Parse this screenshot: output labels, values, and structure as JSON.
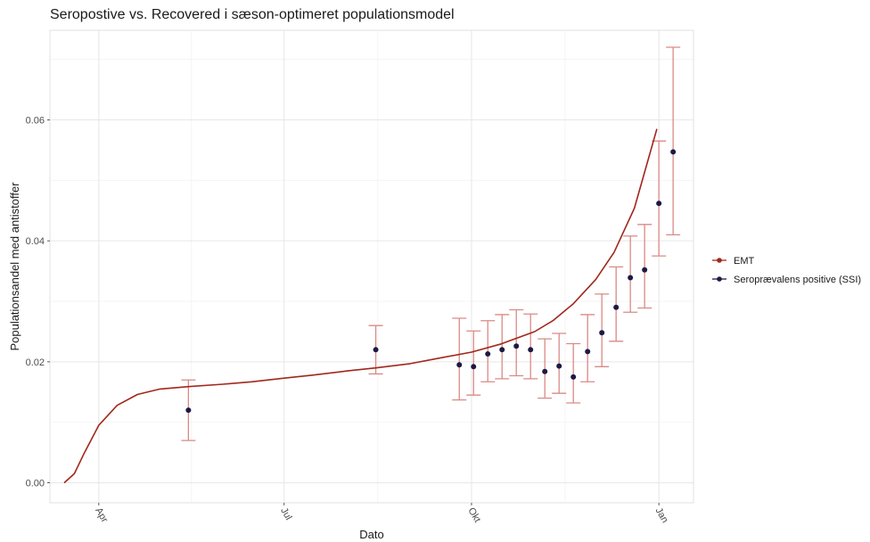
{
  "chart_data": {
    "type": "line",
    "title": "Seropostive vs. Recovered i sæson-optimeret populationsmodel",
    "xlabel": "Dato",
    "ylabel": "Populationsandel med antistoffer",
    "xlim": [
      "2020-03-08",
      "2021-01-18"
    ],
    "ylim": [
      -0.0033,
      0.0748
    ],
    "x_ticks": [
      {
        "date": "2020-04-01",
        "label": "Apr"
      },
      {
        "date": "2020-07-01",
        "label": "Jul"
      },
      {
        "date": "2020-10-01",
        "label": "Okt"
      },
      {
        "date": "2021-01-01",
        "label": "Jan"
      }
    ],
    "y_ticks": [
      {
        "value": 0.0,
        "label": "0.00"
      },
      {
        "value": 0.02,
        "label": "0.02"
      },
      {
        "value": 0.04,
        "label": "0.04"
      },
      {
        "value": 0.06,
        "label": "0.06"
      }
    ],
    "grid": true,
    "legend_position": "right",
    "series": [
      {
        "name": "EMT",
        "kind": "line",
        "color": "#a1281c",
        "x": [
          "2020-03-15",
          "2020-03-20",
          "2020-03-25",
          "2020-04-01",
          "2020-04-10",
          "2020-04-20",
          "2020-05-01",
          "2020-05-15",
          "2020-06-01",
          "2020-06-15",
          "2020-07-01",
          "2020-07-15",
          "2020-08-01",
          "2020-08-15",
          "2020-09-01",
          "2020-09-15",
          "2020-10-01",
          "2020-10-15",
          "2020-11-01",
          "2020-11-10",
          "2020-11-20",
          "2020-12-01",
          "2020-12-10",
          "2020-12-20",
          "2020-12-31"
        ],
        "y": [
          0.0,
          0.0015,
          0.005,
          0.0095,
          0.0128,
          0.0146,
          0.0155,
          0.0159,
          0.0163,
          0.0167,
          0.0173,
          0.0178,
          0.0185,
          0.019,
          0.0197,
          0.0206,
          0.0216,
          0.0229,
          0.025,
          0.0268,
          0.0296,
          0.0336,
          0.0381,
          0.0454,
          0.0585
        ]
      },
      {
        "name": "Seroprævalens positive (SSI)",
        "kind": "errorbar",
        "color": "#1c1a44",
        "errorbar_color": "#d98a86",
        "points": [
          {
            "x": "2020-05-15",
            "y": 0.012,
            "ymin": 0.007,
            "ymax": 0.017
          },
          {
            "x": "2020-08-15",
            "y": 0.022,
            "ymin": 0.018,
            "ymax": 0.026
          },
          {
            "x": "2020-09-25",
            "y": 0.0195,
            "ymin": 0.0137,
            "ymax": 0.0272
          },
          {
            "x": "2020-10-02",
            "y": 0.0192,
            "ymin": 0.0145,
            "ymax": 0.0251
          },
          {
            "x": "2020-10-09",
            "y": 0.0213,
            "ymin": 0.0167,
            "ymax": 0.0268
          },
          {
            "x": "2020-10-16",
            "y": 0.022,
            "ymin": 0.0172,
            "ymax": 0.0278
          },
          {
            "x": "2020-10-23",
            "y": 0.0226,
            "ymin": 0.0177,
            "ymax": 0.0286
          },
          {
            "x": "2020-10-30",
            "y": 0.022,
            "ymin": 0.0172,
            "ymax": 0.0279
          },
          {
            "x": "2020-11-06",
            "y": 0.0184,
            "ymin": 0.014,
            "ymax": 0.0238
          },
          {
            "x": "2020-11-13",
            "y": 0.0193,
            "ymin": 0.0148,
            "ymax": 0.0247
          },
          {
            "x": "2020-11-20",
            "y": 0.0175,
            "ymin": 0.0132,
            "ymax": 0.023
          },
          {
            "x": "2020-11-27",
            "y": 0.0217,
            "ymin": 0.0167,
            "ymax": 0.0278
          },
          {
            "x": "2020-12-04",
            "y": 0.0248,
            "ymin": 0.0192,
            "ymax": 0.0312
          },
          {
            "x": "2020-12-11",
            "y": 0.029,
            "ymin": 0.0234,
            "ymax": 0.0357
          },
          {
            "x": "2020-12-18",
            "y": 0.0339,
            "ymin": 0.0282,
            "ymax": 0.0408
          },
          {
            "x": "2020-12-25",
            "y": 0.0352,
            "ymin": 0.0289,
            "ymax": 0.0427
          },
          {
            "x": "2021-01-01",
            "y": 0.0462,
            "ymin": 0.0375,
            "ymax": 0.0565
          },
          {
            "x": "2021-01-08",
            "y": 0.0547,
            "ymin": 0.041,
            "ymax": 0.072
          }
        ]
      }
    ]
  }
}
